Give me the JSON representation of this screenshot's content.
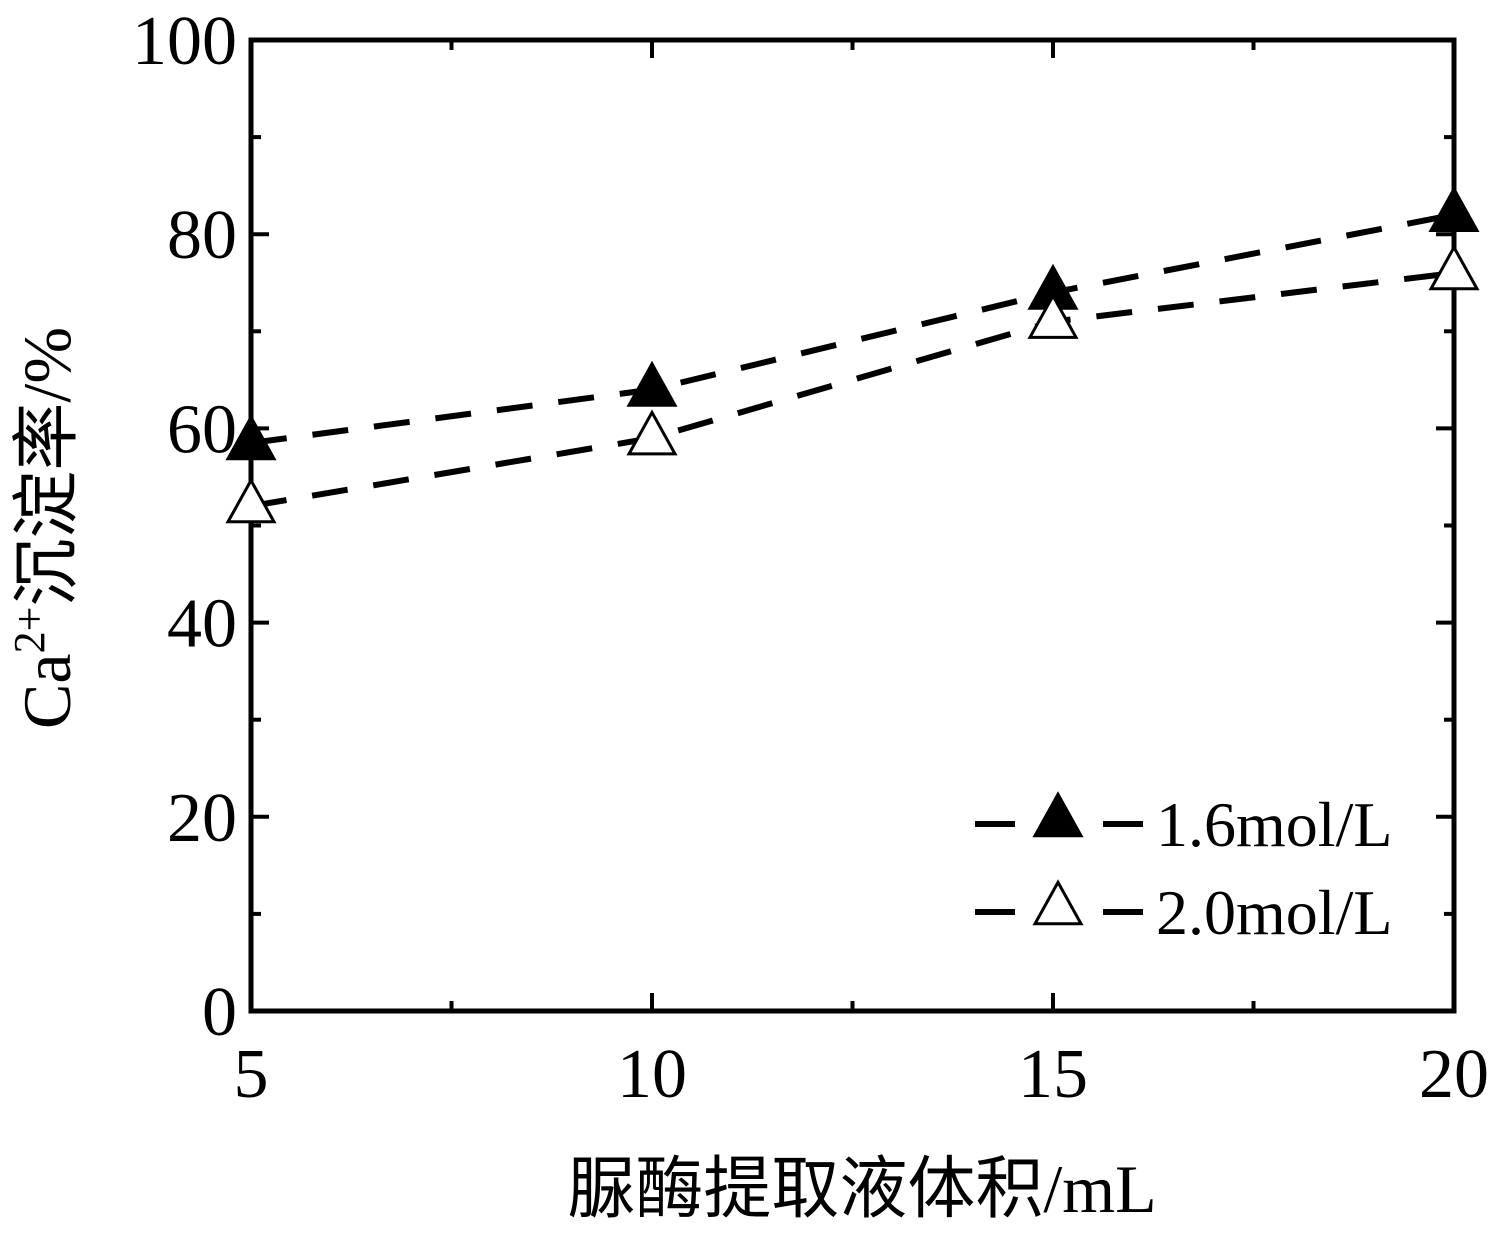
{
  "chart_data": {
    "type": "line",
    "xlabel": "脲酶提取液体积/mL",
    "ylabel": {
      "prefix": "Ca",
      "superscript": "2+",
      "suffix": "沉淀率/%"
    },
    "xlim": [
      5,
      20
    ],
    "ylim": [
      0,
      100
    ],
    "x_ticks": [
      "5",
      "10",
      "15",
      "20"
    ],
    "y_ticks": [
      "0",
      "20",
      "40",
      "60",
      "80",
      "100"
    ],
    "grid": false,
    "legend_position": "bottom-right",
    "x": [
      5,
      10,
      15,
      20
    ],
    "series": [
      {
        "name": "1.6mol/L",
        "marker": "filled-triangle",
        "line_style": "dashed",
        "color": "#000000",
        "values": [
          58.5,
          64,
          74,
          82
        ]
      },
      {
        "name": "2.0mol/L",
        "marker": "open-triangle",
        "line_style": "dashed",
        "color": "#000000",
        "values": [
          52,
          59,
          71,
          76
        ]
      }
    ]
  }
}
